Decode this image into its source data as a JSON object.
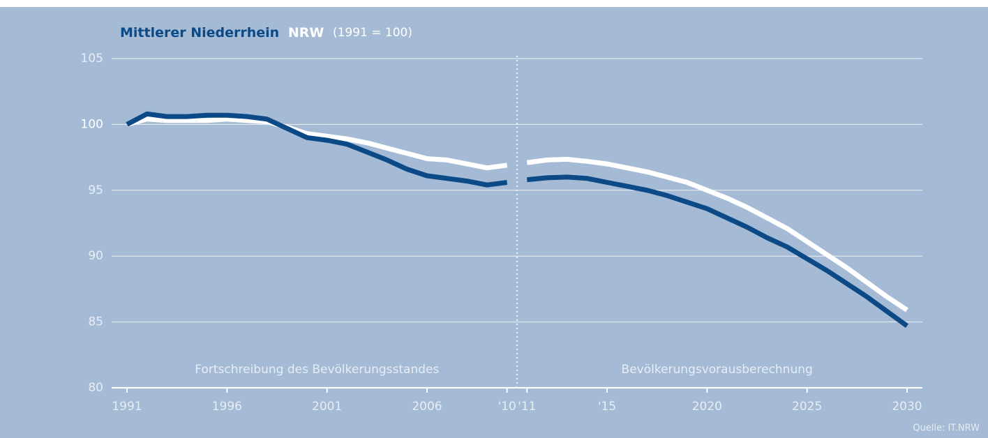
{
  "chart_data": {
    "type": "line",
    "title": "(1991 = 100)",
    "source": "Quelle: IT.NRW",
    "x": [
      1991,
      1992,
      1993,
      1994,
      1995,
      1996,
      1997,
      1998,
      1999,
      2000,
      2001,
      2002,
      2003,
      2004,
      2005,
      2006,
      2007,
      2008,
      2009,
      2010,
      2011,
      2012,
      2013,
      2014,
      2015,
      2016,
      2017,
      2018,
      2019,
      2020,
      2021,
      2022,
      2023,
      2024,
      2025,
      2026,
      2027,
      2028,
      2029,
      2030
    ],
    "series": [
      {
        "name": "Mittlerer Niederrhein",
        "color": "#0b4a86",
        "values": [
          100,
          100.8,
          100.6,
          100.6,
          100.7,
          100.7,
          100.6,
          100.4,
          99.7,
          99.0,
          98.8,
          98.5,
          97.9,
          97.3,
          96.6,
          96.1,
          95.9,
          95.7,
          95.4,
          95.6,
          95.8,
          95.95,
          96.0,
          95.9,
          95.6,
          95.3,
          95.0,
          94.6,
          94.1,
          93.6,
          92.9,
          92.2,
          91.4,
          90.7,
          89.8,
          88.9,
          87.9,
          86.9,
          85.8,
          84.7
        ]
      },
      {
        "name": "NRW",
        "color": "#ffffff",
        "values": [
          100,
          100.4,
          100.3,
          100.3,
          100.3,
          100.4,
          100.3,
          100.2,
          99.8,
          99.3,
          99.1,
          98.9,
          98.6,
          98.2,
          97.8,
          97.4,
          97.3,
          97.0,
          96.7,
          96.9,
          97.1,
          97.3,
          97.35,
          97.2,
          97.0,
          96.7,
          96.4,
          96.0,
          95.6,
          95.0,
          94.4,
          93.7,
          92.9,
          92.1,
          91.1,
          90.1,
          89.1,
          88.0,
          86.9,
          85.9
        ]
      }
    ],
    "sections": [
      {
        "label": "Fortschreibung des Bevölkerungsstandes",
        "from": 1991,
        "to": 2010
      },
      {
        "label": "Bevölkerungsvorausberechnung",
        "from": 2011,
        "to": 2030
      }
    ],
    "xlim": [
      1991,
      2030
    ],
    "xticks": [
      1991,
      1996,
      2001,
      2006,
      {
        "value": 2010,
        "label": "'10"
      },
      {
        "value": 2011,
        "label": "'11"
      },
      {
        "value": 2015,
        "label": "'15"
      },
      2020,
      2025,
      2030
    ],
    "ylim": [
      80,
      105
    ],
    "yticks": [
      80,
      85,
      90,
      95,
      100,
      105
    ],
    "grid": true
  }
}
